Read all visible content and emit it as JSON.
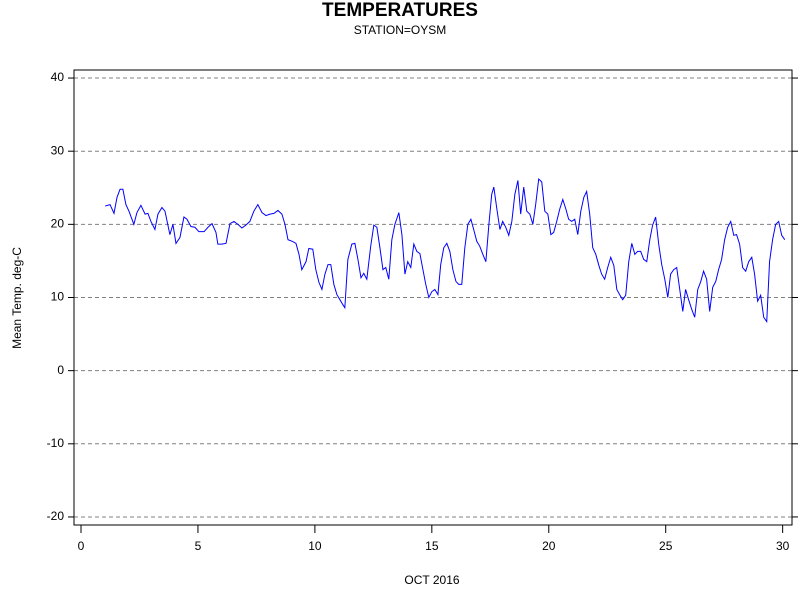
{
  "chart_data": {
    "type": "line",
    "title": "TEMPERATURES",
    "subtitle": "STATION=OYSM",
    "x_label": "OCT 2016",
    "y_label": "Mean Temp. deg-C",
    "xlim": [
      -0.3,
      30.4
    ],
    "xticks": [
      0,
      5,
      10,
      15,
      20,
      25,
      30
    ],
    "ylim": [
      -21.1,
      41.1
    ],
    "yticks": [
      -20,
      -10,
      0,
      10,
      20,
      30,
      40
    ],
    "grid": true,
    "x": [
      1.03,
      1.24,
      1.41,
      1.54,
      1.67,
      1.79,
      1.92,
      2.05,
      2.26,
      2.39,
      2.56,
      2.74,
      2.86,
      2.99,
      3.16,
      3.29,
      3.46,
      3.59,
      3.8,
      3.93,
      4.06,
      4.23,
      4.4,
      4.53,
      4.7,
      4.87,
      5.04,
      5.26,
      5.43,
      5.6,
      5.77,
      5.85,
      6.03,
      6.2,
      6.37,
      6.54,
      6.71,
      6.88,
      7.05,
      7.22,
      7.39,
      7.56,
      7.74,
      7.91,
      8.08,
      8.25,
      8.42,
      8.59,
      8.72,
      8.85,
      9.02,
      9.19,
      9.32,
      9.44,
      9.62,
      9.74,
      9.91,
      10.04,
      10.17,
      10.3,
      10.43,
      10.56,
      10.68,
      10.81,
      10.94,
      11.07,
      11.2,
      11.28,
      11.41,
      11.58,
      11.71,
      11.84,
      11.97,
      12.09,
      12.22,
      12.39,
      12.52,
      12.65,
      12.78,
      12.91,
      13.03,
      13.16,
      13.29,
      13.42,
      13.59,
      13.72,
      13.85,
      13.97,
      14.1,
      14.23,
      14.36,
      14.49,
      14.62,
      14.74,
      14.87,
      15.0,
      15.13,
      15.26,
      15.38,
      15.51,
      15.64,
      15.77,
      15.9,
      16.03,
      16.15,
      16.28,
      16.41,
      16.54,
      16.67,
      16.79,
      16.92,
      17.05,
      17.18,
      17.31,
      17.44,
      17.56,
      17.65,
      17.78,
      17.91,
      18.03,
      18.16,
      18.29,
      18.42,
      18.55,
      18.68,
      18.8,
      18.93,
      19.06,
      19.19,
      19.32,
      19.44,
      19.57,
      19.7,
      19.83,
      19.96,
      20.09,
      20.21,
      20.34,
      20.47,
      20.6,
      20.73,
      20.85,
      20.98,
      21.11,
      21.24,
      21.37,
      21.5,
      21.62,
      21.75,
      21.88,
      22.01,
      22.14,
      22.26,
      22.39,
      22.52,
      22.65,
      22.78,
      22.91,
      23.03,
      23.16,
      23.29,
      23.42,
      23.55,
      23.68,
      23.8,
      23.93,
      24.06,
      24.19,
      24.32,
      24.44,
      24.57,
      24.7,
      24.83,
      24.96,
      25.09,
      25.21,
      25.34,
      25.47,
      25.6,
      25.73,
      25.85,
      25.98,
      26.11,
      26.24,
      26.37,
      26.5,
      26.62,
      26.75,
      26.88,
      27.01,
      27.14,
      27.26,
      27.39,
      27.52,
      27.65,
      27.78,
      27.91,
      28.03,
      28.16,
      28.29,
      28.42,
      28.55,
      28.68,
      28.8,
      28.93,
      29.06,
      29.19,
      29.32,
      29.44,
      29.57,
      29.7,
      29.83,
      29.96,
      30.09
    ],
    "series": [
      {
        "name": "Mean Temp.",
        "color": "#0000ff",
        "values": [
          22.5,
          22.7,
          21.5,
          23.7,
          24.8,
          24.8,
          22.7,
          21.8,
          20.0,
          21.6,
          22.6,
          21.4,
          21.5,
          20.4,
          19.3,
          21.4,
          22.3,
          21.8,
          18.6,
          20.0,
          17.4,
          18.2,
          21.0,
          20.7,
          19.7,
          19.6,
          19.0,
          19.0,
          19.6,
          20.1,
          18.9,
          17.3,
          17.3,
          17.4,
          20.1,
          20.4,
          20.0,
          19.5,
          19.9,
          20.4,
          21.8,
          22.7,
          21.6,
          21.2,
          21.4,
          21.5,
          21.9,
          21.4,
          20.0,
          17.9,
          17.7,
          17.4,
          15.9,
          13.8,
          14.9,
          16.7,
          16.6,
          13.8,
          12.1,
          11.1,
          13.2,
          14.5,
          14.5,
          11.8,
          10.4,
          9.7,
          9.0,
          8.6,
          15.2,
          17.3,
          17.4,
          15.2,
          12.7,
          13.3,
          12.5,
          17.1,
          19.9,
          19.6,
          16.8,
          13.8,
          14.1,
          12.5,
          17.9,
          20.0,
          21.6,
          18.6,
          13.2,
          14.9,
          14.1,
          17.3,
          16.3,
          16.0,
          13.8,
          11.8,
          10.0,
          10.8,
          11.1,
          10.4,
          14.5,
          16.8,
          17.4,
          16.3,
          13.8,
          12.2,
          11.8,
          11.8,
          16.8,
          20.0,
          20.7,
          19.3,
          17.7,
          17.0,
          15.9,
          14.9,
          20.0,
          24.1,
          25.1,
          22.1,
          19.3,
          20.4,
          19.6,
          18.5,
          20.4,
          24.1,
          26.0,
          21.4,
          25.1,
          21.8,
          21.4,
          20.0,
          22.7,
          26.2,
          25.8,
          21.8,
          21.4,
          18.6,
          18.9,
          20.4,
          22.1,
          23.4,
          22.1,
          20.7,
          20.4,
          20.7,
          18.6,
          21.8,
          23.7,
          24.5,
          21.4,
          16.8,
          15.9,
          14.4,
          13.2,
          12.5,
          14.1,
          15.5,
          14.4,
          11.1,
          10.4,
          9.7,
          10.3,
          14.9,
          17.4,
          15.9,
          16.3,
          16.3,
          15.2,
          14.9,
          17.9,
          19.9,
          21.0,
          17.3,
          14.5,
          12.5,
          10.0,
          13.2,
          13.8,
          14.1,
          11.1,
          8.1,
          11.1,
          9.7,
          8.4,
          7.3,
          11.1,
          12.2,
          13.6,
          12.5,
          8.1,
          11.4,
          12.2,
          13.8,
          15.2,
          17.9,
          19.6,
          20.4,
          18.5,
          18.6,
          17.3,
          14.1,
          13.6,
          14.9,
          15.5,
          13.2,
          9.5,
          10.3,
          7.3,
          6.7,
          14.9,
          17.9,
          20.0,
          20.4,
          18.5,
          17.9
        ]
      }
    ]
  }
}
